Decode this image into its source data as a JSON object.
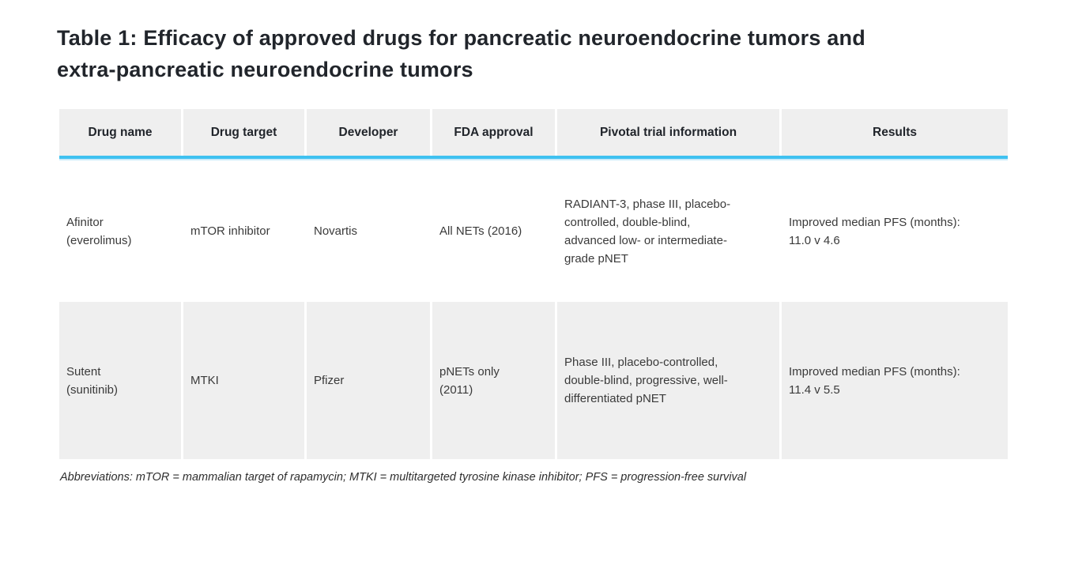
{
  "title": "Table 1: Efficacy of approved drugs for pancreatic neuroendocrine tumors and\nextra-pancreatic neuroendocrine tumors",
  "table": {
    "columns": [
      "Drug name",
      "Drug target",
      "Developer",
      "FDA approval",
      "Pivotal trial information",
      "Results"
    ],
    "rows": [
      {
        "cells": [
          "Afinitor\n(everolimus)",
          "mTOR inhibitor",
          "Novartis",
          "All NETs (2016)",
          "RADIANT-3, phase III, placebo-\ncontrolled, double-blind,\nadvanced low- or intermediate-\ngrade pNET",
          "Improved median PFS (months):\n11.0 v 4.6"
        ]
      },
      {
        "cells": [
          "Sutent\n(sunitinib)",
          "MTKI",
          "Pfizer",
          "pNETs only\n(2011)",
          "Phase III, placebo-controlled,\ndouble-blind, progressive, well-\ndifferentiated pNET",
          "Improved median PFS (months):\n11.4 v 5.5"
        ]
      }
    ]
  },
  "footnote": "Abbreviations: mTOR = mammalian target of rapamycin; MTKI = multitargeted tyrosine kinase inhibitor; PFS = progression-free survival",
  "colors": {
    "accent": "#3fc1f0",
    "header_bg": "#efefef",
    "alt_row_bg": "#efefef",
    "title_text": "#21252b",
    "body_text": "#3a3a3a"
  }
}
